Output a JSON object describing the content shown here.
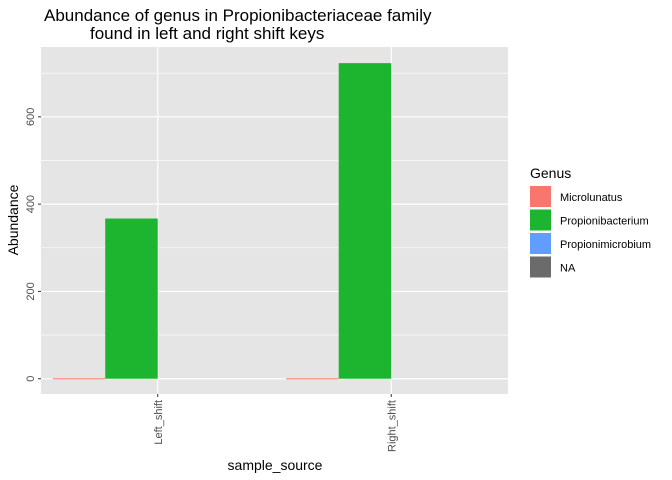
{
  "chart_data": {
    "type": "bar",
    "title": [
      "Abundance of genus in Propionibacteriaceae family",
      "found in left and right shift keys"
    ],
    "xlabel": "sample_source",
    "ylabel": "Abundance",
    "categories": [
      "Left_shift",
      "Right_shift"
    ],
    "yticks": [
      0,
      200,
      400,
      600
    ],
    "ylim": [
      -35,
      760
    ],
    "grid": true,
    "legend_position": "right",
    "legend_title": "Genus",
    "series": [
      {
        "name": "Microlunatus",
        "color": "#F8766D",
        "values": [
          1,
          1
        ]
      },
      {
        "name": "Propionibacterium",
        "color": "#1DB530",
        "values": [
          367,
          723
        ]
      },
      {
        "name": "Propionimicrobium",
        "color": "#619CFF",
        "values": [
          0,
          0
        ]
      },
      {
        "name": "NA",
        "color": "#6B6B6B",
        "values": [
          0,
          0
        ]
      }
    ],
    "panel_background": "#E5E5E5",
    "gridline_color": "#FFFFFF"
  }
}
